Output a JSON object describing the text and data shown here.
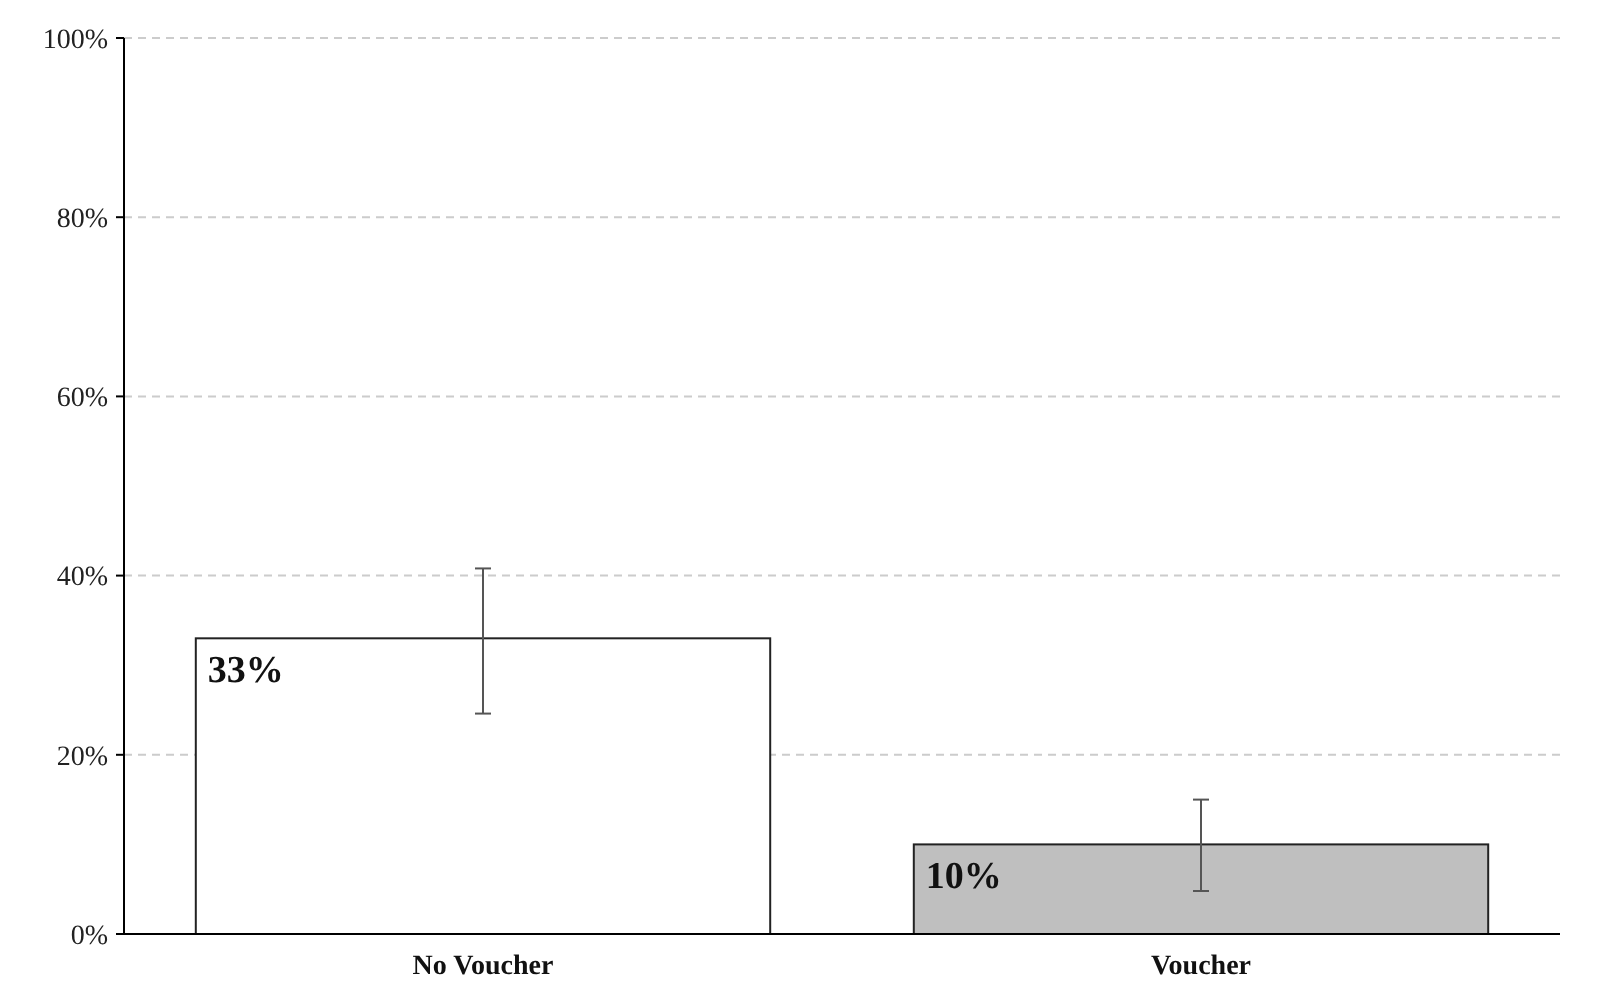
{
  "chart_data": {
    "type": "bar",
    "categories": [
      "No Voucher",
      "Voucher"
    ],
    "values": [
      33,
      10
    ],
    "colors": [
      "#ffffff",
      "#bfbfbf"
    ],
    "errors": [
      [
        24.6,
        40.8
      ],
      [
        4.8,
        15
      ]
    ],
    "value_labels": [
      "33%",
      "10%"
    ],
    "ylim": [
      0,
      100
    ],
    "yticks": [
      {
        "value": 0,
        "label": "0%"
      },
      {
        "value": 20,
        "label": "20%"
      },
      {
        "value": 40,
        "label": "40%"
      },
      {
        "value": 60,
        "label": "60%"
      },
      {
        "value": 80,
        "label": "80%"
      },
      {
        "value": 100,
        "label": "100%"
      }
    ],
    "grid": "y"
  }
}
